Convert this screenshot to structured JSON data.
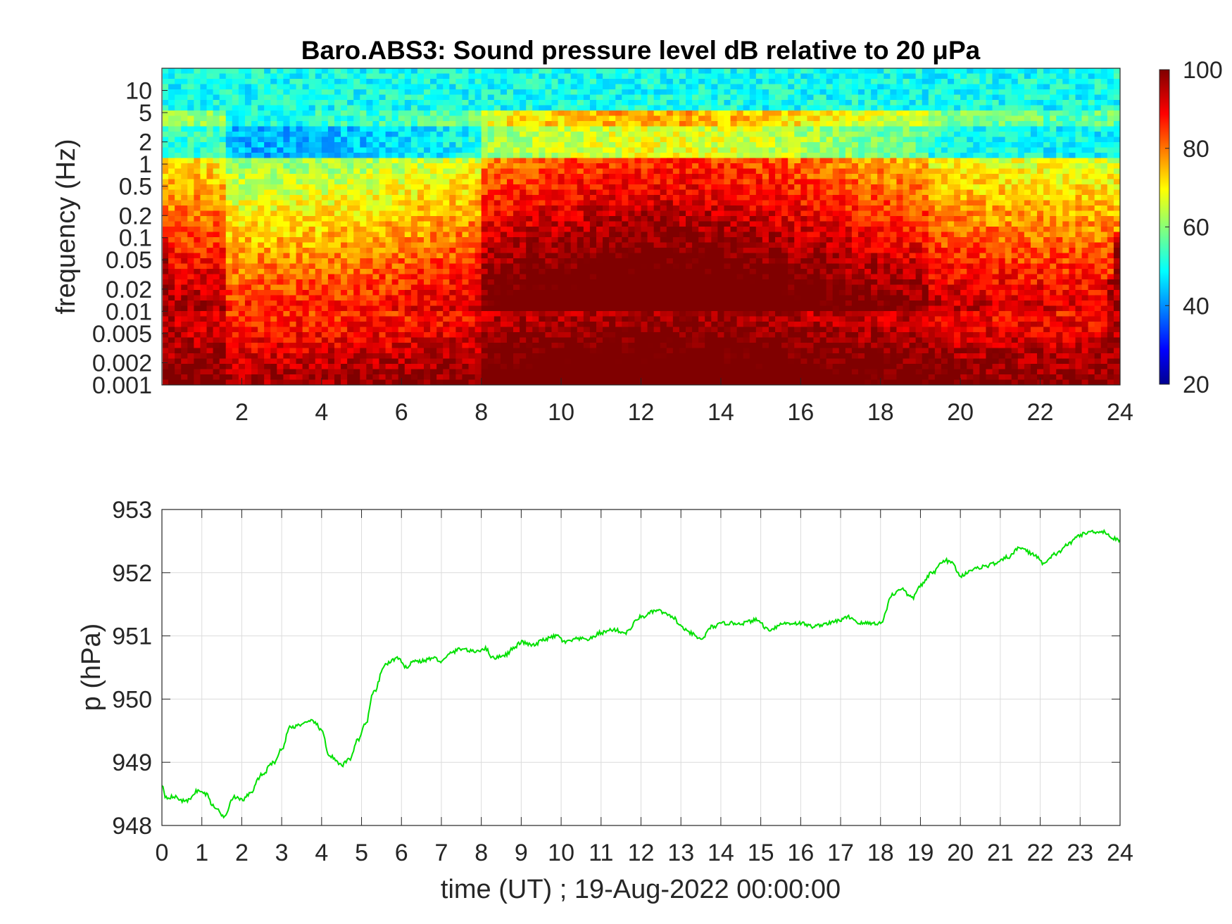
{
  "chart_data": [
    {
      "type": "heatmap",
      "title": "Baro.ABS3: Sound pressure level dB relative to 20 μPa",
      "ylabel": "frequency (Hz)",
      "xlabel": "",
      "xlim": [
        0,
        24
      ],
      "x_ticks": [
        2,
        4,
        6,
        8,
        10,
        12,
        14,
        16,
        18,
        20,
        22,
        24
      ],
      "y_scale": "log",
      "ylim": [
        0.001,
        20
      ],
      "y_ticks": [
        10,
        5,
        2,
        1,
        0.5,
        0.2,
        0.1,
        0.05,
        0.02,
        0.01,
        0.005,
        0.002,
        0.001
      ],
      "y_tick_labels": [
        "10",
        "5",
        "2",
        "1",
        "0.5",
        "0.2",
        "0.1",
        "0.05",
        "0.02",
        "0.01",
        "0.005",
        "0.002",
        "0.001"
      ],
      "colormap": "jet",
      "colorbar": {
        "range": [
          20,
          100
        ],
        "ticks": [
          20,
          40,
          60,
          80,
          100
        ]
      },
      "description_levels": {
        "high_freq_band_dB": 50,
        "mid_freq_quiet_hours_dB": 38,
        "low_freq_dB": 90
      },
      "grid": false
    },
    {
      "type": "line",
      "ylabel": "p (hPa)",
      "xlabel": "time (UT) ; 19-Aug-2022 00:00:00",
      "xlim": [
        0,
        24
      ],
      "ylim": [
        948,
        953
      ],
      "x_ticks": [
        0,
        1,
        2,
        3,
        4,
        5,
        6,
        7,
        8,
        9,
        10,
        11,
        12,
        13,
        14,
        15,
        16,
        17,
        18,
        19,
        20,
        21,
        22,
        23,
        24
      ],
      "y_ticks": [
        948,
        949,
        950,
        951,
        952,
        953
      ],
      "grid": true,
      "series": [
        {
          "color": "#00e000",
          "x": [
            0,
            0.1,
            0.3,
            0.6,
            0.9,
            1.1,
            1.3,
            1.55,
            1.8,
            2.0,
            2.2,
            2.5,
            2.8,
            3.0,
            3.2,
            3.5,
            3.8,
            4.0,
            4.2,
            4.5,
            4.7,
            4.9,
            5.1,
            5.3,
            5.6,
            5.9,
            6.1,
            6.3,
            6.5,
            6.8,
            7.0,
            7.3,
            7.5,
            7.8,
            8.1,
            8.3,
            8.6,
            8.8,
            9.0,
            9.3,
            9.6,
            9.9,
            10.1,
            10.4,
            10.7,
            11.0,
            11.3,
            11.6,
            12.0,
            12.4,
            12.8,
            13.0,
            13.2,
            13.5,
            13.8,
            14.1,
            14.5,
            14.9,
            15.2,
            15.6,
            16.0,
            16.3,
            16.7,
            17.0,
            17.2,
            17.5,
            17.8,
            18.0,
            18.3,
            18.5,
            18.8,
            19.0,
            19.3,
            19.6,
            19.8,
            20.0,
            20.3,
            20.6,
            20.9,
            21.2,
            21.5,
            21.8,
            22.1,
            22.4,
            22.7,
            23.0,
            23.3,
            23.6,
            23.8,
            24.0
          ],
          "y": [
            948.65,
            948.45,
            948.45,
            948.38,
            948.55,
            948.5,
            948.3,
            948.15,
            948.45,
            948.4,
            948.5,
            948.8,
            949.0,
            949.2,
            949.55,
            949.6,
            949.65,
            949.5,
            949.1,
            948.95,
            949.05,
            949.35,
            949.6,
            950.1,
            950.55,
            950.65,
            950.5,
            950.6,
            950.6,
            950.65,
            950.6,
            950.75,
            950.8,
            950.75,
            950.8,
            950.65,
            950.7,
            950.8,
            950.9,
            950.85,
            950.95,
            951.0,
            950.9,
            950.95,
            950.95,
            951.05,
            951.1,
            951.05,
            951.3,
            951.4,
            951.3,
            951.15,
            951.05,
            950.95,
            951.15,
            951.2,
            951.2,
            951.25,
            951.1,
            951.2,
            951.2,
            951.15,
            951.2,
            951.25,
            951.3,
            951.2,
            951.2,
            951.2,
            951.65,
            951.75,
            951.6,
            951.8,
            952.0,
            952.2,
            952.15,
            951.95,
            952.05,
            952.1,
            952.15,
            952.25,
            952.4,
            952.3,
            952.15,
            952.3,
            952.45,
            952.6,
            952.65,
            952.65,
            952.55,
            952.5
          ]
        }
      ]
    }
  ],
  "colors": {
    "line": "#00e000",
    "axes": "#262626",
    "grid": "#dcdcdc"
  }
}
